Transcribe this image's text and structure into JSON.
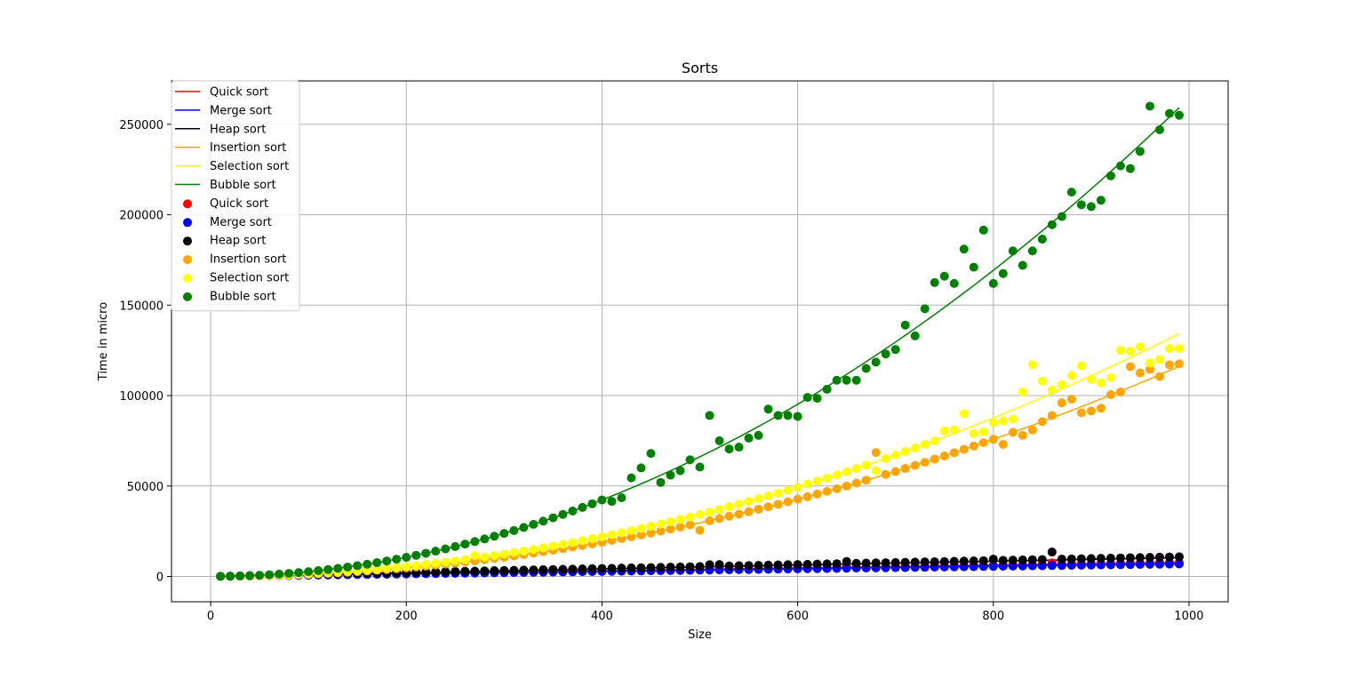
{
  "chart_data": {
    "type": "scatter",
    "title": "Sorts",
    "xlabel": "Size",
    "ylabel": "Time in micro",
    "xlim": [
      -40,
      1040
    ],
    "ylim": [
      -14000,
      274000
    ],
    "xticks": [
      0,
      200,
      400,
      600,
      800,
      1000
    ],
    "yticks": [
      0,
      50000,
      100000,
      150000,
      200000,
      250000
    ],
    "grid": true,
    "legend": {
      "position": "top-left",
      "line_entries": [
        "Quick sort",
        "Merge sort",
        "Heap sort",
        "Insertion sort",
        "Selection sort",
        "Bubble sort"
      ],
      "scatter_entries": [
        "Quick sort",
        "Merge sort",
        "Heap sort",
        "Insertion sort",
        "Selection sort",
        "Bubble sort"
      ]
    },
    "x": [
      10,
      20,
      30,
      40,
      50,
      60,
      70,
      80,
      90,
      100,
      110,
      120,
      130,
      140,
      150,
      160,
      170,
      180,
      190,
      200,
      210,
      220,
      230,
      240,
      250,
      260,
      270,
      280,
      290,
      300,
      310,
      320,
      330,
      340,
      350,
      360,
      370,
      380,
      390,
      400,
      410,
      420,
      430,
      440,
      450,
      460,
      470,
      480,
      490,
      500,
      510,
      520,
      530,
      540,
      550,
      560,
      570,
      580,
      590,
      600,
      610,
      620,
      630,
      640,
      650,
      660,
      670,
      680,
      690,
      700,
      710,
      720,
      730,
      740,
      750,
      760,
      770,
      780,
      790,
      800,
      810,
      820,
      830,
      840,
      850,
      860,
      870,
      880,
      890,
      900,
      910,
      920,
      930,
      940,
      950,
      960,
      970,
      980,
      990
    ],
    "series": [
      {
        "name": "Quick sort",
        "color": "#ff0000",
        "fit": [
          0,
          7.85,
          0
        ],
        "values": [
          60,
          140,
          220,
          300,
          380,
          460,
          540,
          620,
          700,
          780,
          860,
          940,
          1020,
          1100,
          1180,
          1260,
          1340,
          1400,
          1480,
          1560,
          1640,
          1720,
          1800,
          1880,
          1960,
          2040,
          2100,
          2180,
          2260,
          2340,
          2420,
          2500,
          2580,
          2660,
          2740,
          2820,
          2900,
          2980,
          3060,
          3130,
          3200,
          3280,
          3360,
          3440,
          3520,
          3600,
          3680,
          3760,
          3840,
          3920,
          4000,
          4080,
          4160,
          4240,
          4320,
          4400,
          4470,
          4550,
          4630,
          4710,
          4790,
          4870,
          4950,
          5030,
          5110,
          5190,
          5270,
          5350,
          5430,
          5500,
          5580,
          5660,
          5740,
          5820,
          5900,
          5980,
          6060,
          6140,
          6220,
          6300,
          6380,
          6460,
          6540,
          6620,
          6700,
          7500,
          6850,
          6930,
          7010,
          7090,
          7170,
          7250,
          7330,
          7410,
          7490,
          7570,
          7650,
          7730,
          7800
        ]
      },
      {
        "name": "Merge sort",
        "color": "#0000ff",
        "fit": [
          0,
          7.0,
          0
        ],
        "values": [
          50,
          120,
          190,
          260,
          330,
          400,
          470,
          540,
          610,
          680,
          750,
          820,
          890,
          960,
          1030,
          1100,
          1170,
          1240,
          1310,
          1380,
          1450,
          1520,
          1590,
          1660,
          1730,
          1800,
          1870,
          1940,
          2010,
          2080,
          2150,
          2220,
          2290,
          2360,
          2430,
          2500,
          2570,
          2640,
          2710,
          2780,
          2850,
          2920,
          2990,
          3060,
          3130,
          3200,
          3270,
          3340,
          3410,
          3480,
          3550,
          3620,
          3690,
          3760,
          3830,
          3900,
          3970,
          4040,
          4110,
          4180,
          4250,
          4320,
          4390,
          4460,
          4530,
          4600,
          4670,
          4740,
          4810,
          4880,
          4950,
          5020,
          5090,
          5160,
          5230,
          5300,
          5370,
          5440,
          5510,
          5580,
          5650,
          5720,
          5790,
          5860,
          5930,
          6000,
          6070,
          6140,
          6210,
          6280,
          6350,
          6420,
          6490,
          6560,
          6630,
          6700,
          6770,
          6840,
          6910
        ]
      },
      {
        "name": "Heap sort",
        "color": "#000000",
        "fit": [
          0,
          10.5,
          0
        ],
        "values": [
          100,
          210,
          320,
          430,
          540,
          650,
          760,
          870,
          980,
          1090,
          1200,
          1310,
          1420,
          1530,
          1640,
          1750,
          1860,
          1970,
          2080,
          2190,
          2300,
          2410,
          2520,
          2630,
          2740,
          2850,
          2960,
          3070,
          3180,
          3290,
          3400,
          3510,
          3620,
          3730,
          3840,
          3950,
          4060,
          4170,
          4280,
          4390,
          4500,
          4610,
          4720,
          4830,
          4940,
          5050,
          5160,
          5270,
          5380,
          5490,
          6500,
          6600,
          5830,
          5940,
          6050,
          6160,
          6270,
          6380,
          6490,
          6600,
          6710,
          6820,
          6930,
          7040,
          8300,
          7260,
          7370,
          7480,
          7590,
          7700,
          7810,
          7920,
          8030,
          8140,
          8250,
          8360,
          8470,
          8580,
          8690,
          9600,
          8910,
          9020,
          9130,
          9240,
          9350,
          13500,
          9570,
          9680,
          9790,
          9900,
          10010,
          10120,
          10230,
          10340,
          10450,
          10560,
          10670,
          10780,
          10890
        ]
      },
      {
        "name": "Insertion sort",
        "color": "#ffa500",
        "fit": [
          0.1185,
          0,
          0
        ],
        "values": [
          10,
          50,
          100,
          190,
          300,
          420,
          580,
          760,
          960,
          1180,
          1430,
          1700,
          2000,
          2320,
          2660,
          3030,
          3420,
          3840,
          4270,
          4740,
          5220,
          5730,
          6270,
          6830,
          7400,
          8010,
          8640,
          9290,
          9960,
          10660,
          11390,
          12130,
          12900,
          13700,
          14520,
          15350,
          16220,
          17110,
          18020,
          18960,
          19920,
          20900,
          21910,
          22940,
          24000,
          25080,
          26180,
          27300,
          28450,
          25500,
          30800,
          32000,
          33300,
          34500,
          35800,
          37200,
          38500,
          39900,
          41300,
          42700,
          44100,
          45600,
          47000,
          48500,
          50000,
          51600,
          53200,
          68500,
          56400,
          58000,
          59700,
          61400,
          63100,
          64900,
          66600,
          68400,
          70300,
          72100,
          74000,
          75800,
          73000,
          79700,
          78000,
          81000,
          85600,
          89000,
          96000,
          98000,
          90500,
          91500,
          93000,
          100500,
          102000,
          116000,
          112500,
          114500,
          110500,
          117000,
          117500
        ]
      },
      {
        "name": "Selection sort",
        "color": "#ffff00",
        "fit": [
          0.137,
          0,
          0
        ],
        "values": [
          15,
          60,
          130,
          220,
          340,
          500,
          680,
          880,
          1110,
          1370,
          1660,
          1980,
          2320,
          2690,
          3080,
          3500,
          3960,
          4440,
          4950,
          5480,
          6040,
          6630,
          7250,
          7890,
          8560,
          9260,
          11500,
          10740,
          11520,
          12330,
          13170,
          14030,
          14920,
          15840,
          16780,
          17750,
          18750,
          19780,
          20840,
          21920,
          23030,
          24170,
          25340,
          26530,
          27750,
          29000,
          30270,
          31570,
          32900,
          34250,
          35600,
          37000,
          38500,
          39900,
          41500,
          43000,
          44500,
          46000,
          47700,
          49300,
          51000,
          52700,
          54400,
          56100,
          57900,
          59700,
          61500,
          58500,
          65200,
          67100,
          69100,
          71000,
          73000,
          75000,
          80500,
          81000,
          90000,
          79000,
          80000,
          85000,
          86000,
          87000,
          102000,
          117000,
          108000,
          103000,
          106000,
          111000,
          116500,
          109000,
          107000,
          110000,
          125000,
          124500,
          127000,
          118000,
          120000,
          126000,
          126000
        ]
      },
      {
        "name": "Bubble sort",
        "color": "#008000",
        "fit": [
          0.2645,
          0,
          0
        ],
        "values": [
          30,
          110,
          240,
          420,
          660,
          950,
          1290,
          1690,
          2140,
          2640,
          3200,
          3800,
          4470,
          5180,
          5950,
          6770,
          7640,
          8570,
          9550,
          10580,
          11660,
          12800,
          13990,
          15240,
          16530,
          17880,
          19280,
          20740,
          22250,
          23800,
          25400,
          27100,
          28800,
          30600,
          32400,
          34300,
          36200,
          38200,
          40200,
          42300,
          41500,
          43500,
          54500,
          60000,
          68000,
          52000,
          56000,
          58500,
          64500,
          60500,
          89000,
          75000,
          70500,
          71500,
          76500,
          78000,
          92500,
          89000,
          89000,
          88500,
          99000,
          98500,
          103500,
          108500,
          108500,
          108500,
          115000,
          118500,
          123000,
          125500,
          139000,
          133000,
          148000,
          162500,
          166000,
          162000,
          181000,
          171000,
          191500,
          162000,
          167500,
          180000,
          172000,
          180000,
          186500,
          194500,
          199000,
          212500,
          205500,
          204500,
          208000,
          221500,
          227000,
          225500,
          235000,
          260000,
          247000,
          256000,
          255000
        ]
      }
    ]
  }
}
